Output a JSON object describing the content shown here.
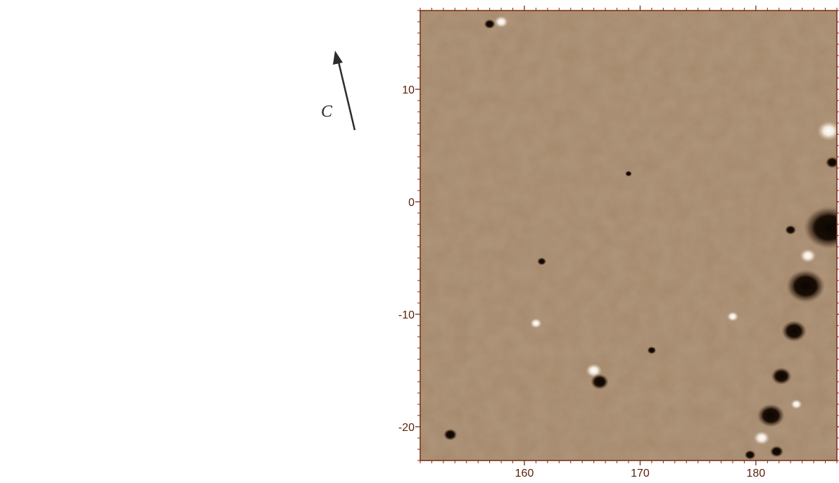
{
  "map": {
    "north_label": "C",
    "x_axis": {
      "min": 151,
      "max": 187,
      "ticks": [
        160,
        170,
        180
      ],
      "labels": [
        "160",
        "170",
        "180"
      ]
    },
    "y_axis": {
      "min": -23,
      "max": 17,
      "ticks": [
        10,
        0,
        -10,
        -20
      ],
      "labels": [
        "10",
        "0",
        "-10",
        "-20"
      ]
    },
    "colors": {
      "background": "#a5896d",
      "axis": "#7a2a10",
      "anomaly_dark": "#120a04",
      "anomaly_light": "#fbf6ef"
    },
    "dark_anomalies": [
      {
        "x": 186.3,
        "y": -2.3,
        "r": 2.2
      },
      {
        "x": 184.3,
        "y": -7.5,
        "r": 1.7
      },
      {
        "x": 183.3,
        "y": -11.5,
        "r": 1.1
      },
      {
        "x": 182.2,
        "y": -15.5,
        "r": 0.9
      },
      {
        "x": 181.3,
        "y": -19.0,
        "r": 1.2
      },
      {
        "x": 181.8,
        "y": -22.2,
        "r": 0.6
      },
      {
        "x": 179.5,
        "y": -22.5,
        "r": 0.5
      },
      {
        "x": 166.5,
        "y": -16.0,
        "r": 0.8
      },
      {
        "x": 153.6,
        "y": -20.7,
        "r": 0.6
      },
      {
        "x": 157.0,
        "y": 15.8,
        "r": 0.5
      },
      {
        "x": 186.6,
        "y": 3.5,
        "r": 0.6
      },
      {
        "x": 169.0,
        "y": 2.5,
        "r": 0.3
      },
      {
        "x": 171.0,
        "y": -13.2,
        "r": 0.4
      },
      {
        "x": 161.5,
        "y": -5.3,
        "r": 0.4
      },
      {
        "x": 183.0,
        "y": -2.5,
        "r": 0.5
      }
    ],
    "light_anomalies": [
      {
        "x": 166.0,
        "y": -15.0,
        "r": 0.7
      },
      {
        "x": 158.0,
        "y": 16.0,
        "r": 0.6
      },
      {
        "x": 161.0,
        "y": -10.8,
        "r": 0.5
      },
      {
        "x": 178.0,
        "y": -10.2,
        "r": 0.5
      },
      {
        "x": 186.3,
        "y": 6.3,
        "r": 1.0
      },
      {
        "x": 184.5,
        "y": -4.8,
        "r": 0.7
      },
      {
        "x": 180.5,
        "y": -21.0,
        "r": 0.7
      },
      {
        "x": 183.5,
        "y": -18.0,
        "r": 0.5
      }
    ]
  }
}
